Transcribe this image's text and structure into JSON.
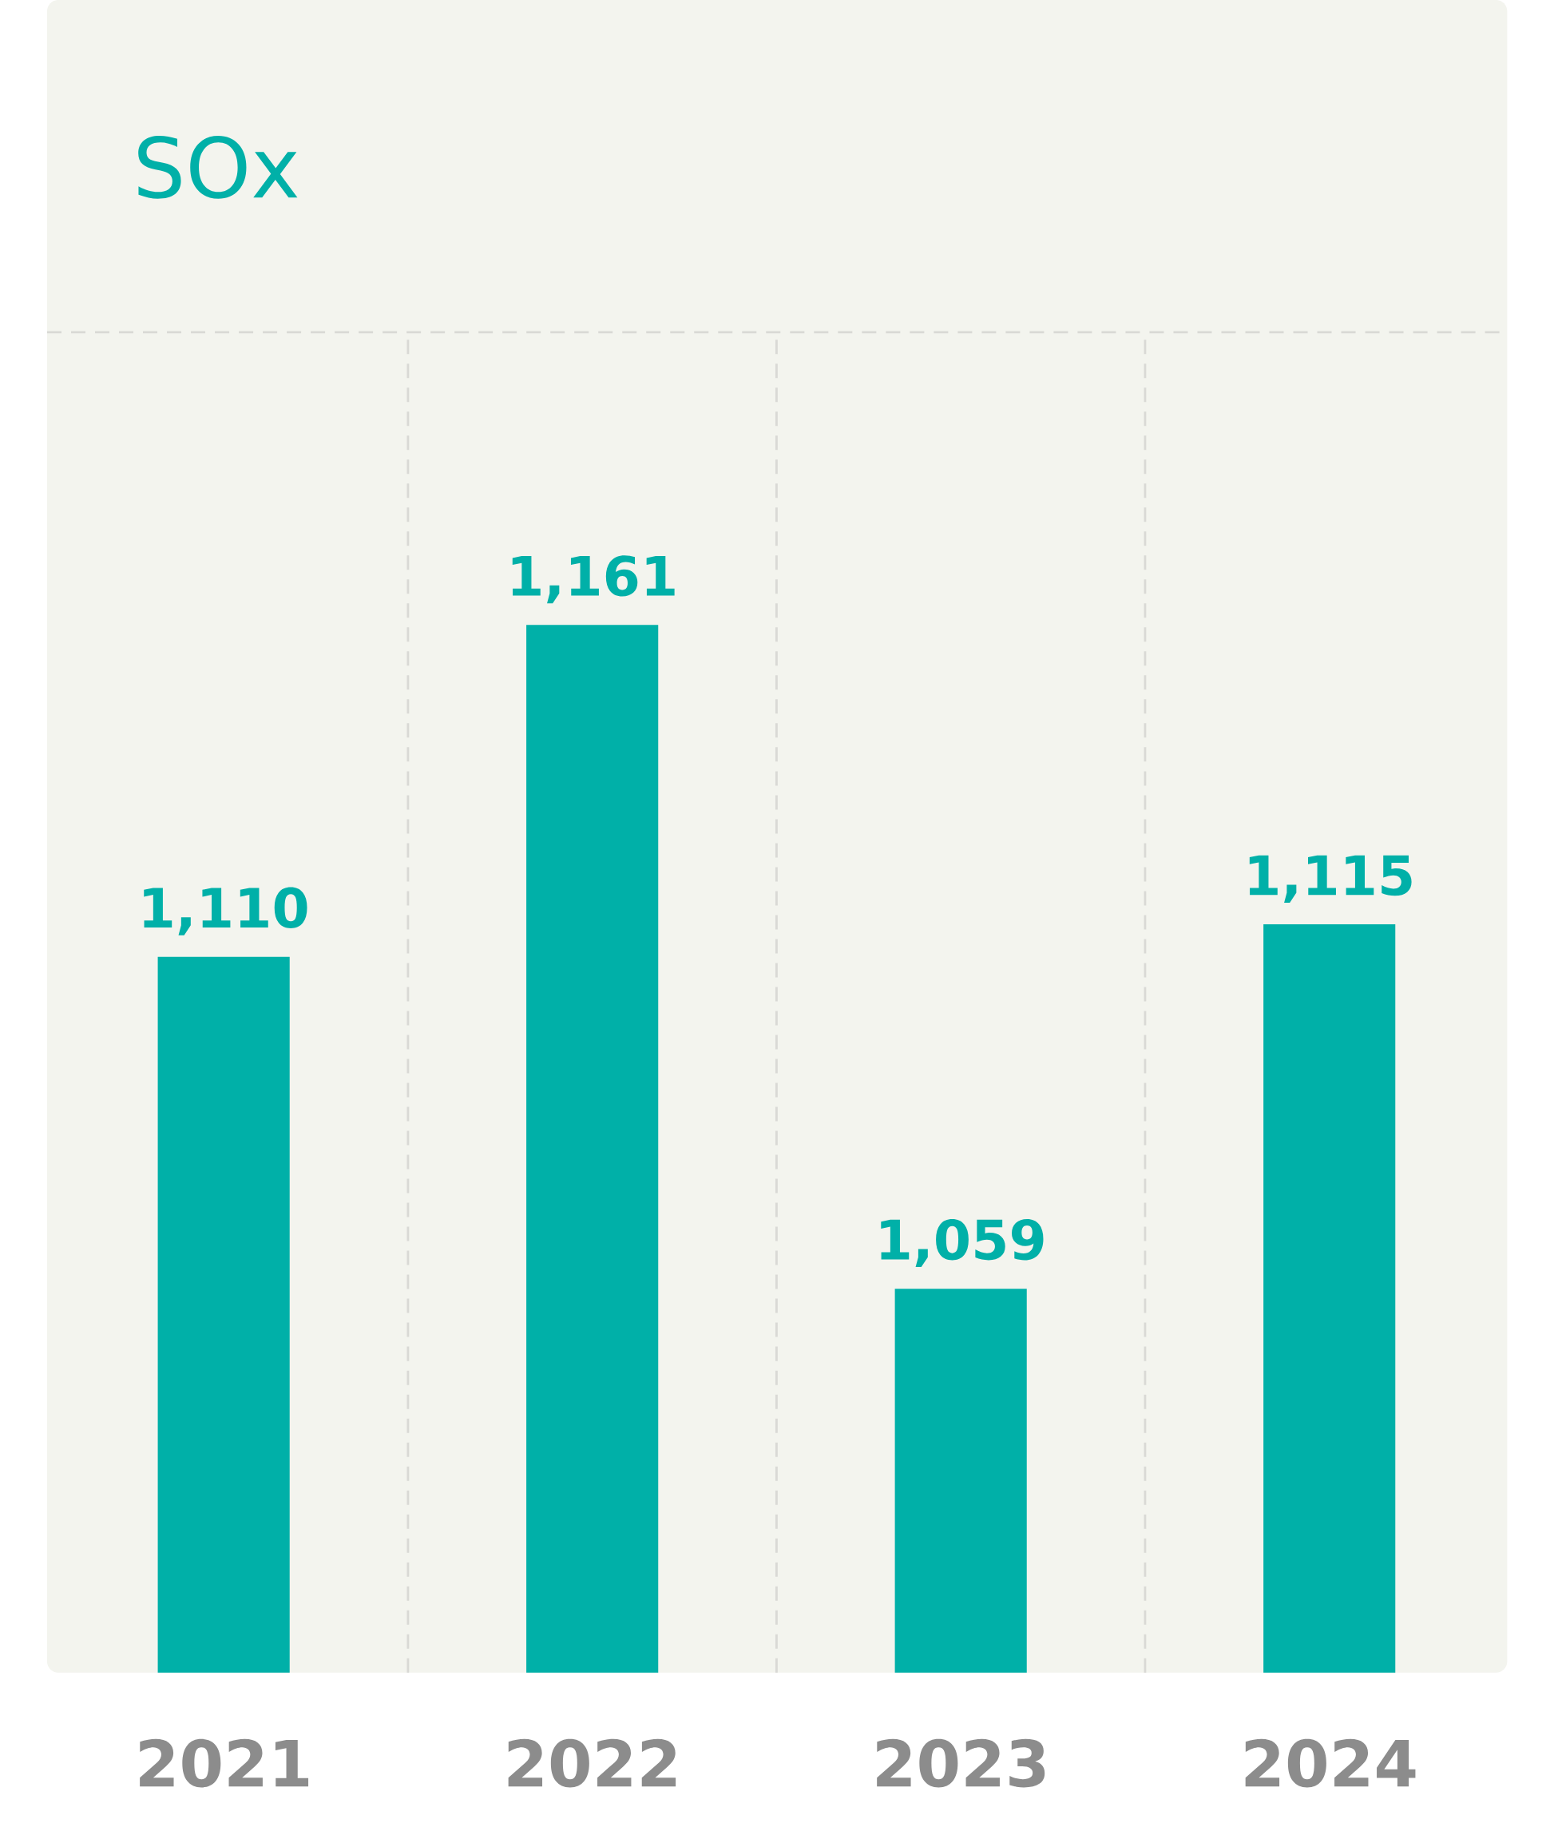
{
  "chart_data": {
    "type": "bar",
    "title": "SOx",
    "categories": [
      "2021",
      "2022",
      "2023",
      "2024"
    ],
    "values": [
      1110,
      1161,
      1059,
      1115
    ],
    "value_labels": [
      "1,110",
      "1,161",
      "1,059",
      "1,115"
    ],
    "color": "#00b0a8",
    "ylim": [
      1000,
      1206
    ],
    "grid": "x"
  }
}
